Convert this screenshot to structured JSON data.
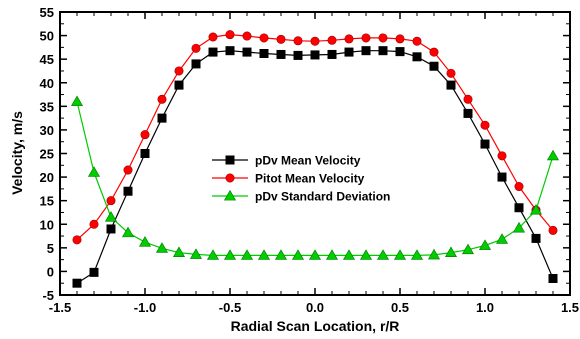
{
  "chart_data": {
    "type": "line",
    "xlabel": "Radial Scan Location, r/R",
    "ylabel": "Velocity, m/s",
    "xlim": [
      -1.5,
      1.5
    ],
    "ylim": [
      -5,
      55
    ],
    "xticks": [
      -1.5,
      -1.0,
      -0.5,
      0.0,
      0.5,
      1.0,
      1.5
    ],
    "xtick_labels": [
      "-1.5",
      "-1.0",
      "-0.5",
      "0.0",
      "0.5",
      "1.0",
      "1.5"
    ],
    "yticks": [
      -5,
      0,
      5,
      10,
      15,
      20,
      25,
      30,
      35,
      40,
      45,
      50,
      55
    ],
    "ytick_labels": [
      "-5",
      "0",
      "5",
      "10",
      "15",
      "20",
      "25",
      "30",
      "35",
      "40",
      "45",
      "50",
      "55"
    ],
    "grid": false,
    "legend_position": "center",
    "series": [
      {
        "name": "pDv Mean Velocity",
        "color": "#000000",
        "marker": "square",
        "x": [
          -1.4,
          -1.3,
          -1.2,
          -1.1,
          -1.0,
          -0.9,
          -0.8,
          -0.7,
          -0.6,
          -0.5,
          -0.4,
          -0.3,
          -0.2,
          -0.1,
          0.0,
          0.1,
          0.2,
          0.3,
          0.4,
          0.5,
          0.6,
          0.7,
          0.8,
          0.9,
          1.0,
          1.1,
          1.2,
          1.3,
          1.4
        ],
        "values": [
          -2.5,
          -0.2,
          9,
          17,
          25,
          32.5,
          39.5,
          44,
          46.5,
          46.8,
          46.5,
          46.2,
          46.0,
          45.8,
          45.9,
          46.0,
          46.5,
          46.8,
          46.8,
          46.6,
          45.5,
          43.5,
          39.5,
          33.5,
          27,
          20,
          13.5,
          7,
          -1.5
        ]
      },
      {
        "name": "Pitot Mean Velocity",
        "color": "#ff0000",
        "marker": "circle",
        "x": [
          -1.4,
          -1.3,
          -1.2,
          -1.1,
          -1.0,
          -0.9,
          -0.8,
          -0.7,
          -0.6,
          -0.5,
          -0.4,
          -0.3,
          -0.2,
          -0.1,
          0.0,
          0.1,
          0.2,
          0.3,
          0.4,
          0.5,
          0.6,
          0.7,
          0.8,
          0.9,
          1.0,
          1.1,
          1.2,
          1.3,
          1.4
        ],
        "values": [
          6.7,
          10,
          15,
          21.5,
          29,
          36.5,
          42.5,
          47.3,
          49.7,
          50.2,
          49.9,
          49.5,
          49.2,
          48.9,
          48.8,
          49.0,
          49.3,
          49.5,
          49.5,
          49.3,
          48.8,
          46.5,
          42,
          36.5,
          31,
          24.5,
          18,
          13,
          8.7
        ]
      },
      {
        "name": "pDv Standard Deviation",
        "color": "#00cc00",
        "marker": "triangle",
        "x": [
          -1.4,
          -1.3,
          -1.2,
          -1.1,
          -1.0,
          -0.9,
          -0.8,
          -0.7,
          -0.6,
          -0.5,
          -0.4,
          -0.3,
          -0.2,
          -0.1,
          0.0,
          0.1,
          0.2,
          0.3,
          0.4,
          0.5,
          0.6,
          0.7,
          0.8,
          0.9,
          1.0,
          1.1,
          1.2,
          1.3,
          1.4
        ],
        "values": [
          36,
          21,
          11.5,
          8.2,
          6.2,
          4.9,
          4.0,
          3.6,
          3.4,
          3.4,
          3.4,
          3.4,
          3.4,
          3.4,
          3.4,
          3.4,
          3.4,
          3.4,
          3.4,
          3.4,
          3.4,
          3.5,
          4.0,
          4.6,
          5.5,
          6.8,
          9.2,
          13,
          24.5
        ]
      }
    ]
  }
}
